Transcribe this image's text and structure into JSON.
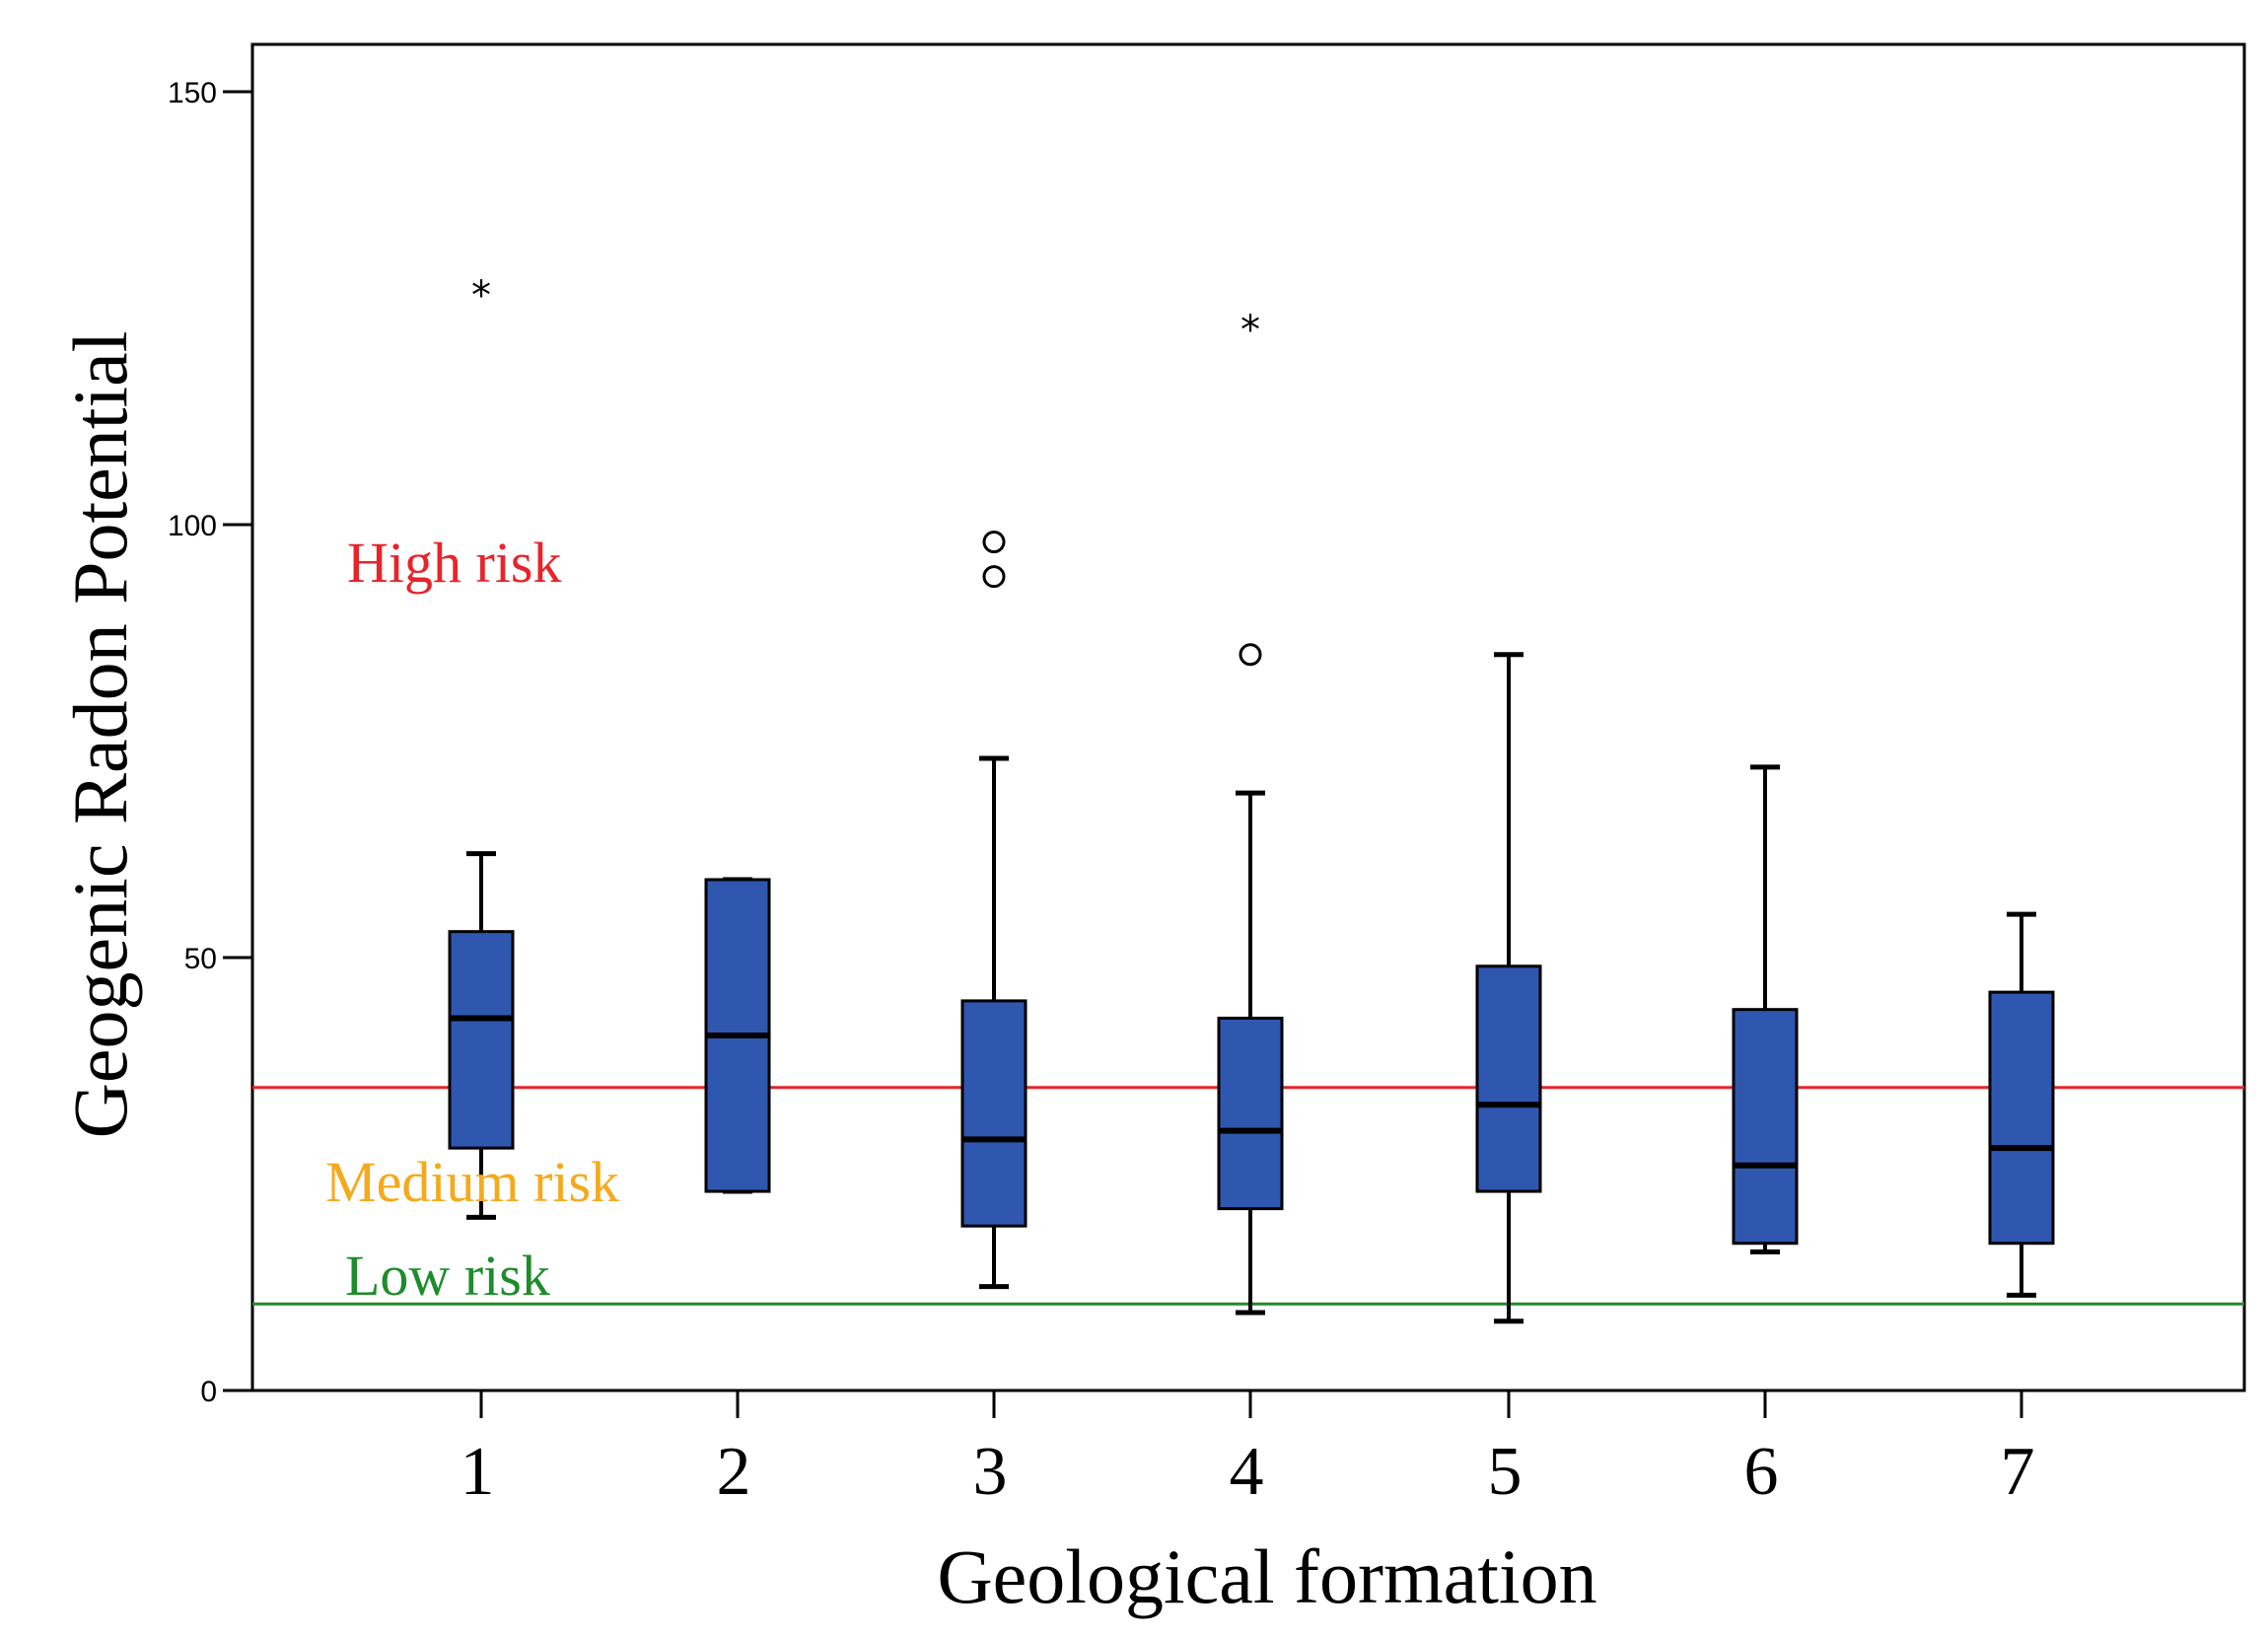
{
  "chart_data": {
    "type": "boxplot",
    "title": "",
    "xlabel": "Geological formation",
    "ylabel": "Geogenic Radon Potential",
    "ylim": [
      0,
      150
    ],
    "yticks": [
      0,
      50,
      100,
      150
    ],
    "categories": [
      "1",
      "2",
      "3",
      "4",
      "5",
      "6",
      "7"
    ],
    "boxes": [
      {
        "category": "1",
        "whisker_low": 20,
        "q1": 28,
        "median": 43,
        "q3": 53,
        "whisker_high": 62,
        "outliers": [],
        "extremes": [
          127
        ]
      },
      {
        "category": "2",
        "whisker_low": 23,
        "q1": 23,
        "median": 41,
        "q3": 59,
        "whisker_high": 59,
        "outliers": [],
        "extremes": []
      },
      {
        "category": "3",
        "whisker_low": 12,
        "q1": 19,
        "median": 29,
        "q3": 45,
        "whisker_high": 73,
        "outliers": [
          94,
          98
        ],
        "extremes": []
      },
      {
        "category": "4",
        "whisker_low": 9,
        "q1": 21,
        "median": 30,
        "q3": 43,
        "whisker_high": 69,
        "outliers": [
          85
        ],
        "extremes": [
          123
        ]
      },
      {
        "category": "5",
        "whisker_low": 8,
        "q1": 23,
        "median": 33,
        "q3": 49,
        "whisker_high": 85,
        "outliers": [],
        "extremes": []
      },
      {
        "category": "6",
        "whisker_low": 16,
        "q1": 17,
        "median": 26,
        "q3": 44,
        "whisker_high": 72,
        "outliers": [],
        "extremes": []
      },
      {
        "category": "7",
        "whisker_low": 11,
        "q1": 17,
        "median": 28,
        "q3": 46,
        "whisker_high": 55,
        "outliers": [],
        "extremes": []
      }
    ],
    "reference_lines": [
      {
        "name": "high-risk-threshold",
        "value": 35,
        "color": "#e8242b"
      },
      {
        "name": "low-risk-threshold",
        "value": 10,
        "color": "#1e8c2a"
      }
    ],
    "annotations": [
      {
        "name": "high-risk-label",
        "text": "High risk",
        "color": "#e8242b"
      },
      {
        "name": "medium-risk-label",
        "text": "Medium risk",
        "color": "#f5a91c"
      },
      {
        "name": "low-risk-label",
        "text": "Low risk",
        "color": "#1e8c2a"
      }
    ],
    "box_color": "#2f57b0",
    "outlier_symbol": "circle",
    "extreme_symbol": "star"
  }
}
